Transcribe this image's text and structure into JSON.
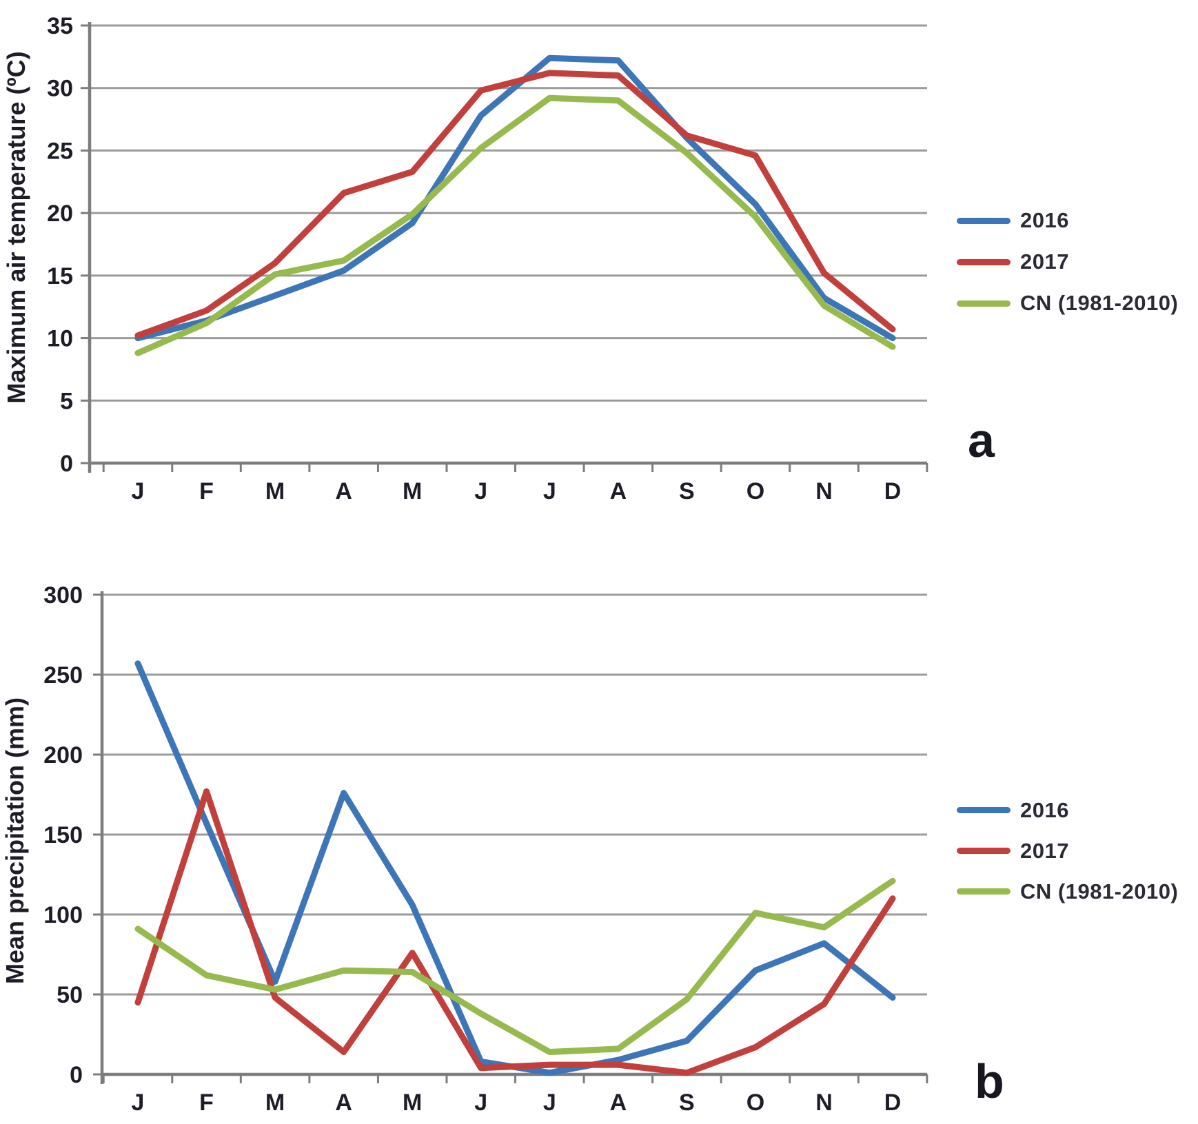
{
  "figure": {
    "panel_a_label": "a",
    "panel_b_label": "b"
  },
  "colors": {
    "series_2016": "#3d76b8",
    "series_2017": "#c2403c",
    "series_cn": "#97ba4e",
    "gridline": "#9b9b9b",
    "axis": "#7d7d7d",
    "text": "#1d1d28"
  },
  "chart_data": [
    {
      "type": "line",
      "panel": "a",
      "ylabel": "Maximum air temperature (ºC)",
      "xlabel": "",
      "categories": [
        "J",
        "F",
        "M",
        "A",
        "M",
        "J",
        "J",
        "A",
        "S",
        "O",
        "N",
        "D"
      ],
      "ylim": [
        0,
        35
      ],
      "yticks": [
        0,
        5,
        10,
        15,
        20,
        25,
        30,
        35
      ],
      "grid": true,
      "legend_position": "right",
      "series": [
        {
          "name": "2016",
          "color": "#3d76b8",
          "values": [
            10.0,
            11.4,
            13.4,
            15.4,
            19.2,
            27.8,
            32.4,
            32.2,
            26.0,
            20.7,
            13.2,
            10.0
          ]
        },
        {
          "name": "2017",
          "color": "#c2403c",
          "values": [
            10.2,
            12.2,
            16.0,
            21.6,
            23.3,
            29.8,
            31.2,
            31.0,
            26.2,
            24.6,
            15.2,
            10.7
          ]
        },
        {
          "name": "CN (1981-2010)",
          "color": "#97ba4e",
          "values": [
            8.8,
            11.2,
            15.1,
            16.2,
            19.9,
            25.2,
            29.2,
            29.0,
            24.8,
            19.7,
            12.6,
            9.3
          ]
        }
      ]
    },
    {
      "type": "line",
      "panel": "b",
      "ylabel": "Mean precipitation (mm)",
      "xlabel": "",
      "categories": [
        "J",
        "F",
        "M",
        "A",
        "M",
        "J",
        "J",
        "A",
        "S",
        "O",
        "N",
        "D"
      ],
      "ylim": [
        0,
        300
      ],
      "yticks": [
        0,
        50,
        100,
        150,
        200,
        250,
        300
      ],
      "grid": true,
      "legend_position": "right",
      "series": [
        {
          "name": "2016",
          "color": "#3d76b8",
          "values": [
            257,
            157,
            58,
            176,
            106,
            8,
            1,
            9,
            21,
            65,
            82,
            48
          ]
        },
        {
          "name": "2017",
          "color": "#c2403c",
          "values": [
            45,
            177,
            48,
            14,
            76,
            4,
            6,
            6,
            1,
            17,
            44,
            110
          ]
        },
        {
          "name": "CN (1981-2010)",
          "color": "#97ba4e",
          "values": [
            91,
            62,
            53,
            65,
            64,
            38,
            14,
            16,
            47,
            101,
            92,
            121
          ]
        }
      ]
    }
  ]
}
